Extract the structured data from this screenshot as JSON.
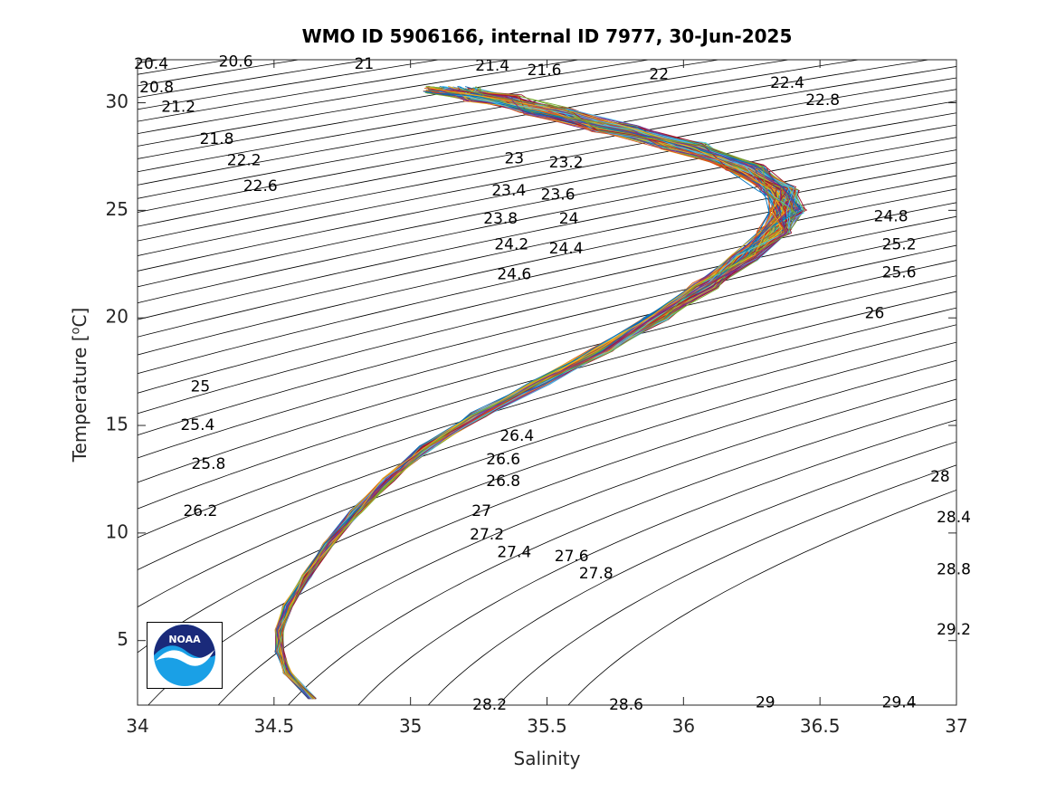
{
  "chart_data": {
    "type": "line",
    "title": "WMO ID 5906166, internal ID 7977, 30-Jun-2025",
    "xlabel": "Salinity",
    "ylabel_prefix": "Temperature [",
    "ylabel_sup": "o",
    "ylabel_suffix": "C]",
    "xlim": [
      34,
      37
    ],
    "ylim": [
      2,
      32
    ],
    "x_ticks": [
      "34",
      "34.5",
      "35",
      "35.5",
      "36",
      "36.5",
      "37"
    ],
    "y_ticks": [
      "5",
      "10",
      "15",
      "20",
      "25",
      "30"
    ],
    "grid": false,
    "logo_text": "NOAA",
    "isopycnals": [
      {
        "label": "20.4",
        "S": 34.05,
        "T": 31.8
      },
      {
        "label": "20.6",
        "S": 34.36,
        "T": 31.9
      },
      {
        "label": "20.8",
        "S": 34.07,
        "T": 30.7
      },
      {
        "label": "21",
        "S": 34.83,
        "T": 31.8
      },
      {
        "label": "21.2",
        "S": 34.15,
        "T": 29.8
      },
      {
        "label": "21.4",
        "S": 35.3,
        "T": 31.7
      },
      {
        "label": "21.6",
        "S": 35.49,
        "T": 31.5
      },
      {
        "label": "21.8",
        "S": 34.29,
        "T": 28.3
      },
      {
        "label": "22",
        "S": 35.91,
        "T": 31.3
      },
      {
        "label": "22.2",
        "S": 34.39,
        "T": 27.3
      },
      {
        "label": "22.4",
        "S": 36.38,
        "T": 30.9
      },
      {
        "label": "22.6",
        "S": 34.45,
        "T": 26.1
      },
      {
        "label": "22.8",
        "S": 36.51,
        "T": 30.1
      },
      {
        "label": "23",
        "S": 35.38,
        "T": 27.4
      },
      {
        "label": "23.2",
        "S": 35.57,
        "T": 27.2
      },
      {
        "label": "23.4",
        "S": 35.36,
        "T": 25.9
      },
      {
        "label": "23.6",
        "S": 35.54,
        "T": 25.7
      },
      {
        "label": "23.8",
        "S": 35.33,
        "T": 24.6
      },
      {
        "label": "24",
        "S": 35.58,
        "T": 24.6
      },
      {
        "label": "24.2",
        "S": 35.37,
        "T": 23.4
      },
      {
        "label": "24.4",
        "S": 35.57,
        "T": 23.2
      },
      {
        "label": "24.6",
        "S": 35.38,
        "T": 22.0
      },
      {
        "label": "24.8",
        "S": 36.76,
        "T": 24.7
      },
      {
        "label": "25.2",
        "S": 36.79,
        "T": 23.4
      },
      {
        "label": "25.6",
        "S": 36.79,
        "T": 22.1
      },
      {
        "label": "26",
        "S": 36.7,
        "T": 20.2
      },
      {
        "label": "25",
        "S": 34.23,
        "T": 16.8
      },
      {
        "label": "25.4",
        "S": 34.22,
        "T": 15.0
      },
      {
        "label": "25.8",
        "S": 34.26,
        "T": 13.2
      },
      {
        "label": "26.2",
        "S": 34.23,
        "T": 11.0
      },
      {
        "label": "26.4",
        "S": 35.39,
        "T": 14.5
      },
      {
        "label": "26.6",
        "S": 35.34,
        "T": 13.4
      },
      {
        "label": "26.8",
        "S": 35.34,
        "T": 12.4
      },
      {
        "label": "27",
        "S": 35.26,
        "T": 11.0
      },
      {
        "label": "27.2",
        "S": 35.28,
        "T": 9.9
      },
      {
        "label": "27.4",
        "S": 35.38,
        "T": 9.1
      },
      {
        "label": "27.6",
        "S": 35.59,
        "T": 8.9
      },
      {
        "label": "27.8",
        "S": 35.68,
        "T": 8.1
      },
      {
        "label": "28",
        "S": 36.94,
        "T": 12.6
      },
      {
        "label": "28.4",
        "S": 36.99,
        "T": 10.7
      },
      {
        "label": "28.8",
        "S": 36.99,
        "T": 8.3
      },
      {
        "label": "29.2",
        "S": 36.99,
        "T": 5.5
      },
      {
        "label": "28.2",
        "S": 35.29,
        "T": 2.0
      },
      {
        "label": "28.6",
        "S": 35.79,
        "T": 2.0
      },
      {
        "label": "29",
        "S": 36.3,
        "T": 2.1
      },
      {
        "label": "29.4",
        "S": 36.79,
        "T": 2.1
      }
    ],
    "mean_profile": [
      {
        "S": 34.64,
        "T": 2.3
      },
      {
        "S": 34.55,
        "T": 3.5
      },
      {
        "S": 34.52,
        "T": 4.5
      },
      {
        "S": 34.52,
        "T": 5.5
      },
      {
        "S": 34.55,
        "T": 6.6
      },
      {
        "S": 34.62,
        "T": 8.0
      },
      {
        "S": 34.7,
        "T": 9.5
      },
      {
        "S": 34.8,
        "T": 11.0
      },
      {
        "S": 34.92,
        "T": 12.5
      },
      {
        "S": 35.06,
        "T": 14.0
      },
      {
        "S": 35.25,
        "T": 15.5
      },
      {
        "S": 35.48,
        "T": 17.0
      },
      {
        "S": 35.7,
        "T": 18.5
      },
      {
        "S": 35.9,
        "T": 20.0
      },
      {
        "S": 36.08,
        "T": 21.5
      },
      {
        "S": 36.22,
        "T": 22.8
      },
      {
        "S": 36.33,
        "T": 24.0
      },
      {
        "S": 36.38,
        "T": 25.0
      },
      {
        "S": 36.35,
        "T": 26.0
      },
      {
        "S": 36.22,
        "T": 27.0
      },
      {
        "S": 36.0,
        "T": 28.0
      },
      {
        "S": 35.75,
        "T": 28.8
      },
      {
        "S": 35.5,
        "T": 29.6
      },
      {
        "S": 35.3,
        "T": 30.2
      },
      {
        "S": 35.15,
        "T": 30.6
      }
    ],
    "profile_count": 180,
    "profile_colors": [
      "#0072BD",
      "#D95319",
      "#EDB120",
      "#7E2F8E",
      "#77AC30",
      "#4DBEEE",
      "#A2142F"
    ]
  }
}
